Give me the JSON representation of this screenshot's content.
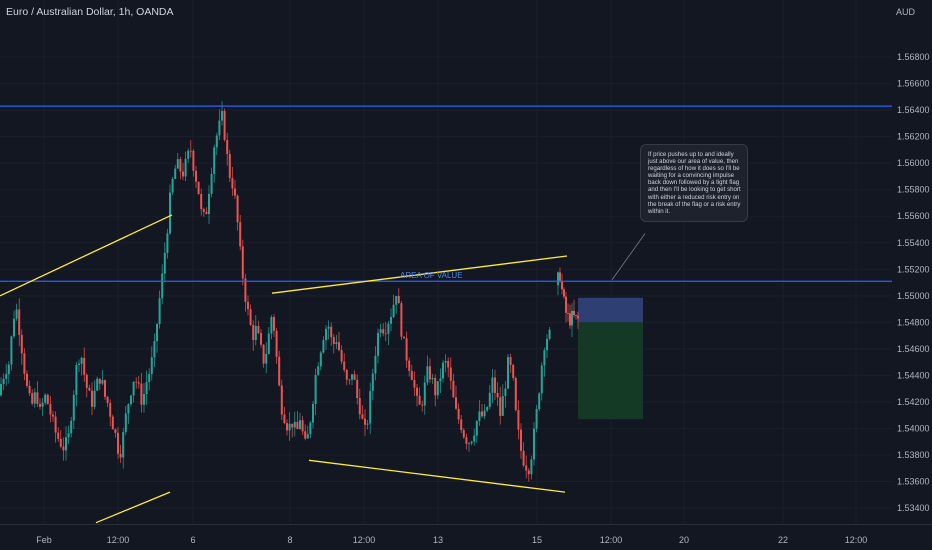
{
  "header": {
    "title": "Euro / Australian Dollar, 1h, OANDA",
    "currency": "AUD"
  },
  "note": {
    "text": "If price pushes up to and ideally just above our area of value, then regardless of how it does so I'll be waiting for a convincing impulse back down followed by a tight flag and then I'll be looking to get short with either a reduced risk entry on the break of the flag or a risk entry within it."
  },
  "labels": {
    "area_of_value": "AREA OF VALUE"
  },
  "colors": {
    "background": "#131722",
    "bull": "#26a69a",
    "bear": "#ef5350",
    "trendline": "#ffeb3b",
    "horizontal": "#2962ff",
    "stop_zone": "#2d3f73",
    "target_zone": "#143a26",
    "area_label": "#4f86e8"
  },
  "chart_data": {
    "type": "candlestick",
    "symbol": "Euro / Australian Dollar",
    "timeframe": "1h",
    "source": "OANDA",
    "y_unit": "AUD",
    "y_ticks": [
      "1.53400",
      "1.53600",
      "1.53800",
      "1.54000",
      "1.54200",
      "1.54400",
      "1.54600",
      "1.54800",
      "1.55000",
      "1.55200",
      "1.55400",
      "1.55600",
      "1.55800",
      "1.56000",
      "1.56200",
      "1.56400",
      "1.56600",
      "1.56800"
    ],
    "ylim": [
      1.5328,
      1.5723
    ],
    "x_ticks": [
      "Feb",
      "12:00",
      "6",
      "8",
      "12:00",
      "13",
      "15",
      "12:00",
      "20",
      "22",
      "12:00"
    ],
    "horizontal_levels": [
      1.5643,
      1.5511
    ],
    "path": [
      [
        0,
        1.5425
      ],
      [
        3,
        1.5435
      ],
      [
        7,
        1.5445
      ],
      [
        11,
        1.545
      ],
      [
        15,
        1.5485
      ],
      [
        18,
        1.549
      ],
      [
        22,
        1.547
      ],
      [
        26,
        1.5445
      ],
      [
        30,
        1.5422
      ],
      [
        34,
        1.5418
      ],
      [
        38,
        1.5428
      ],
      [
        42,
        1.541
      ],
      [
        46,
        1.5425
      ],
      [
        50,
        1.5418
      ],
      [
        54,
        1.5405
      ],
      [
        58,
        1.5395
      ],
      [
        62,
        1.539
      ],
      [
        66,
        1.5385
      ],
      [
        70,
        1.5392
      ],
      [
        74,
        1.542
      ],
      [
        78,
        1.5445
      ],
      [
        82,
        1.546
      ],
      [
        86,
        1.544
      ],
      [
        90,
        1.5425
      ],
      [
        94,
        1.542
      ],
      [
        98,
        1.5432
      ],
      [
        102,
        1.544
      ],
      [
        106,
        1.5425
      ],
      [
        110,
        1.5418
      ],
      [
        114,
        1.5405
      ],
      [
        118,
        1.5392
      ],
      [
        121,
        1.538
      ],
      [
        124,
        1.539
      ],
      [
        128,
        1.5412
      ],
      [
        132,
        1.5428
      ],
      [
        136,
        1.544
      ],
      [
        140,
        1.543
      ],
      [
        144,
        1.542
      ],
      [
        148,
        1.5435
      ],
      [
        152,
        1.5445
      ],
      [
        156,
        1.546
      ],
      [
        160,
        1.549
      ],
      [
        164,
        1.5515
      ],
      [
        168,
        1.5545
      ],
      [
        172,
        1.5575
      ],
      [
        176,
        1.5595
      ],
      [
        180,
        1.5598
      ],
      [
        184,
        1.5592
      ],
      [
        188,
        1.56
      ],
      [
        192,
        1.5612
      ],
      [
        196,
        1.5595
      ],
      [
        200,
        1.558
      ],
      [
        204,
        1.5555
      ],
      [
        208,
        1.5565
      ],
      [
        212,
        1.559
      ],
      [
        216,
        1.5615
      ],
      [
        220,
        1.5625
      ],
      [
        224,
        1.5635
      ],
      [
        227,
        1.5618
      ],
      [
        230,
        1.5595
      ],
      [
        234,
        1.5585
      ],
      [
        238,
        1.5565
      ],
      [
        242,
        1.553
      ],
      [
        246,
        1.5505
      ],
      [
        250,
        1.5485
      ],
      [
        254,
        1.547
      ],
      [
        258,
        1.5475
      ],
      [
        262,
        1.546
      ],
      [
        266,
        1.545
      ],
      [
        270,
        1.5468
      ],
      [
        274,
        1.549
      ],
      [
        278,
        1.5455
      ],
      [
        282,
        1.542
      ],
      [
        286,
        1.541
      ],
      [
        290,
        1.54
      ],
      [
        294,
        1.5405
      ],
      [
        298,
        1.5395
      ],
      [
        302,
        1.541
      ],
      [
        306,
        1.5385
      ],
      [
        310,
        1.5395
      ],
      [
        314,
        1.542
      ],
      [
        318,
        1.5445
      ],
      [
        322,
        1.546
      ],
      [
        326,
        1.5475
      ],
      [
        330,
        1.5478
      ],
      [
        334,
        1.5462
      ],
      [
        338,
        1.5468
      ],
      [
        342,
        1.5455
      ],
      [
        346,
        1.544
      ],
      [
        350,
        1.543
      ],
      [
        354,
        1.5445
      ],
      [
        358,
        1.5425
      ],
      [
        362,
        1.5415
      ],
      [
        366,
        1.5395
      ],
      [
        370,
        1.541
      ],
      [
        374,
        1.544
      ],
      [
        378,
        1.5465
      ],
      [
        382,
        1.548
      ],
      [
        386,
        1.5475
      ],
      [
        390,
        1.5482
      ],
      [
        394,
        1.549
      ],
      [
        398,
        1.5505
      ],
      [
        402,
        1.548
      ],
      [
        406,
        1.546
      ],
      [
        410,
        1.545
      ],
      [
        414,
        1.544
      ],
      [
        418,
        1.542
      ],
      [
        422,
        1.5415
      ],
      [
        426,
        1.543
      ],
      [
        430,
        1.5445
      ],
      [
        434,
        1.5435
      ],
      [
        438,
        1.5425
      ],
      [
        442,
        1.544
      ],
      [
        446,
        1.545
      ],
      [
        450,
        1.5445
      ],
      [
        454,
        1.5425
      ],
      [
        458,
        1.541
      ],
      [
        462,
        1.5405
      ],
      [
        466,
        1.5395
      ],
      [
        470,
        1.539
      ],
      [
        474,
        1.5395
      ],
      [
        478,
        1.5405
      ],
      [
        482,
        1.541
      ],
      [
        486,
        1.5408
      ],
      [
        490,
        1.542
      ],
      [
        494,
        1.5435
      ],
      [
        498,
        1.5425
      ],
      [
        502,
        1.541
      ],
      [
        506,
        1.543
      ],
      [
        510,
        1.545
      ],
      [
        514,
        1.544
      ],
      [
        518,
        1.5405
      ],
      [
        522,
        1.5385
      ],
      [
        526,
        1.5375
      ],
      [
        530,
        1.537
      ],
      [
        534,
        1.5385
      ],
      [
        538,
        1.541
      ],
      [
        542,
        1.544
      ],
      [
        546,
        1.5465
      ],
      [
        549,
        1.547
      ]
    ],
    "segments": {
      "post": [
        [
          557,
          1.5508
        ],
        [
          561,
          1.5516
        ],
        [
          564,
          1.5498
        ],
        [
          567,
          1.5487
        ],
        [
          570,
          1.5482
        ],
        [
          574,
          1.5484
        ],
        [
          577,
          1.5482
        ]
      ]
    },
    "trendlines": [
      {
        "from": [
          0,
          1.55
        ],
        "to": [
          172,
          1.5561
        ]
      },
      {
        "from": [
          96,
          1.5329
        ],
        "to": [
          170,
          1.5352
        ]
      },
      {
        "from": [
          272,
          1.5502
        ],
        "to": [
          567,
          1.553
        ]
      },
      {
        "from": [
          309,
          1.5376
        ],
        "to": [
          565,
          1.5352
        ]
      }
    ],
    "callout_line": {
      "from": [
        612,
        1.5512
      ],
      "to": [
        645,
        1.5547
      ]
    },
    "position_tool": {
      "type": "short",
      "x_range": [
        578,
        643
      ],
      "entry": 1.548,
      "stop": 1.54985,
      "target": 1.5407
    },
    "annotation": {
      "text_key": "area_of_value",
      "x": 400,
      "y": 1.55135
    }
  }
}
